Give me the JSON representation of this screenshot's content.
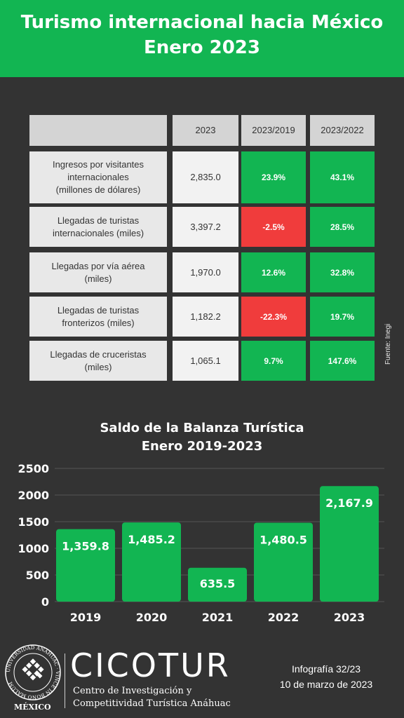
{
  "header": {
    "title_line1": "Turismo internacional hacia México",
    "title_line2": "Enero 2023"
  },
  "table": {
    "columns": [
      "",
      "2023",
      "2023/2019",
      "2023/2022"
    ],
    "rows": [
      {
        "label": [
          "Ingresos  por visitantes",
          "internacionales",
          "(millones de dólares)"
        ],
        "v2023": "2,835.0",
        "vs2019": "23.9%",
        "vs2019_status": "positive",
        "vs2022": "43.1%",
        "vs2022_status": "positive"
      },
      {
        "label": [
          "Llegadas de turistas",
          "internacionales (miles)"
        ],
        "v2023": "3,397.2",
        "vs2019": "-2.5%",
        "vs2019_status": "negative",
        "vs2022": "28.5%",
        "vs2022_status": "positive"
      },
      {
        "label": [
          "Llegadas por vía aérea",
          "(miles)"
        ],
        "v2023": "1,970.0",
        "vs2019": "12.6%",
        "vs2019_status": "positive",
        "vs2022": "32.8%",
        "vs2022_status": "positive"
      },
      {
        "label": [
          "Llegadas de turistas",
          "fronterizos (miles)"
        ],
        "v2023": "1,182.2",
        "vs2019": "-22.3%",
        "vs2019_status": "negative",
        "vs2022": "19.7%",
        "vs2022_status": "positive"
      },
      {
        "label": [
          "Llegadas de cruceristas",
          "(miles)"
        ],
        "v2023": "1,065.1",
        "vs2019": "9.7%",
        "vs2019_status": "positive",
        "vs2022": "147.6%",
        "vs2022_status": "positive"
      }
    ],
    "colors": {
      "positive": "#12b552",
      "negative": "#f03c3c"
    }
  },
  "source": "Fuente: Inegi",
  "chart_data": {
    "type": "bar",
    "title": "Saldo de la Balanza Turística",
    "subtitle": "Enero 2019-2023",
    "categories": [
      "2019",
      "2020",
      "2021",
      "2022",
      "2023"
    ],
    "values": [
      1359.8,
      1485.2,
      635.5,
      1480.5,
      2167.9
    ],
    "data_labels": [
      "1,359.8",
      "1,485.2",
      "635.5",
      "1,480.5",
      "2,167.9"
    ],
    "yticks": [
      0,
      500,
      1000,
      1500,
      2000,
      2500
    ],
    "ylim": [
      0,
      2500
    ],
    "grid": true,
    "bar_color": "#12b552",
    "xlabel": "",
    "ylabel": ""
  },
  "footer": {
    "university_seal_text": "UNIVERSIDAD ANÁHUAC · VINCE IN BONO MALUM",
    "country": "MÉXICO",
    "brand": "CICOTUR",
    "brand_sub_line1": "Centro de Investigación y",
    "brand_sub_line2": "Competitividad Turística Anáhuac",
    "infografia": "Infografía 32/23",
    "date": "10 de marzo de 2023"
  }
}
